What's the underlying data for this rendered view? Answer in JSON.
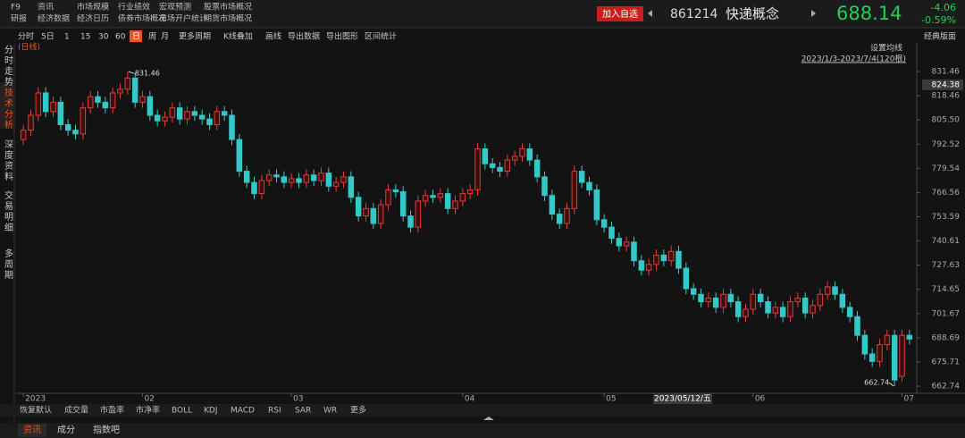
{
  "header": {
    "menu": [
      "F9",
      "资讯",
      "市场规模",
      "行业绩效",
      "宏观预测",
      "股票市场概况",
      "研报",
      "经济数据",
      "经济日历",
      "债券市场概况",
      "市场开户统计",
      "期货市场概况"
    ],
    "add_button": "加入自选",
    "code": "861214",
    "name": "快递概念",
    "price": "688.14",
    "change": "-4.06",
    "change_pct": "-0.59%"
  },
  "toolbar": {
    "items": [
      "分时",
      "5日",
      "1",
      "15",
      "30",
      "60",
      "日",
      "周",
      "月",
      "更多周期",
      "K线叠加",
      "画线",
      "导出数据",
      "导出图形",
      "区间统计"
    ],
    "layout": "经典版面"
  },
  "sidebar": [
    "分时走势",
    "技术分析",
    "深度资料",
    "交易明细",
    "多周期"
  ],
  "indicators": [
    "恢复默认",
    "成交量",
    "市盈率",
    "市净率",
    "BOLL",
    "KDJ",
    "MACD",
    "RSI",
    "SAR",
    "WR",
    "更多"
  ],
  "tabs": [
    "资讯",
    "成分",
    "指数吧"
  ],
  "chart_data": {
    "type": "candlestick",
    "subtitle": "(日线)",
    "ma_setting": "设置均线",
    "range_label": "2023/1/3-2023/7/4(120根)",
    "crosshair_date": "2023/05/12/五",
    "crosshair_price": 824.38,
    "up_color": "#e8393a",
    "down_color": "#33c9c9",
    "categories": [
      "2023",
      null,
      null,
      null,
      null,
      null,
      null,
      null,
      null,
      null,
      null,
      null,
      null,
      null,
      null,
      null,
      "02",
      null,
      null,
      null,
      null,
      null,
      null,
      null,
      null,
      null,
      null,
      null,
      null,
      null,
      null,
      null,
      null,
      null,
      null,
      null,
      "03",
      null,
      null,
      null,
      null,
      null,
      null,
      null,
      null,
      null,
      null,
      null,
      null,
      null,
      null,
      null,
      null,
      null,
      null,
      null,
      null,
      null,
      null,
      "04",
      null,
      null,
      null,
      null,
      null,
      null,
      null,
      null,
      null,
      null,
      null,
      null,
      null,
      null,
      null,
      null,
      null,
      null,
      "05",
      null,
      null,
      null,
      null,
      null,
      null,
      null,
      null,
      null,
      null,
      null,
      null,
      null,
      null,
      null,
      null,
      null,
      null,
      null,
      "06",
      null,
      null,
      null,
      null,
      null,
      null,
      null,
      null,
      null,
      null,
      null,
      null,
      null,
      null,
      null,
      null,
      null,
      null,
      null,
      "07",
      null
    ],
    "open": [
      795,
      800,
      808,
      820,
      810,
      815,
      803,
      800,
      798,
      812,
      818,
      815,
      812,
      820,
      822,
      828,
      815,
      818,
      808,
      805,
      807,
      812,
      806,
      810,
      808,
      806,
      803,
      810,
      808,
      795,
      778,
      772,
      766,
      773,
      776,
      775,
      772,
      774,
      772,
      776,
      773,
      777,
      770,
      772,
      775,
      764,
      754,
      758,
      750,
      760,
      768,
      767,
      754,
      748,
      762,
      765,
      764,
      766,
      758,
      762,
      766,
      768,
      790,
      782,
      780,
      778,
      784,
      786,
      790,
      784,
      775,
      765,
      755,
      750,
      758,
      778,
      772,
      768,
      752,
      748,
      742,
      738,
      740,
      730,
      725,
      728,
      733,
      730,
      735,
      726,
      715,
      712,
      708,
      710,
      705,
      712,
      708,
      700,
      704,
      712,
      708,
      702,
      705,
      700,
      708,
      710,
      702,
      706,
      712,
      716,
      712,
      705,
      700,
      690,
      680,
      676,
      685,
      690,
      668,
      690
    ],
    "high": [
      803,
      811,
      823,
      823,
      818,
      818,
      806,
      803,
      815,
      821,
      821,
      818,
      823,
      825,
      831.46,
      831,
      821,
      821,
      811,
      810,
      815,
      815,
      813,
      813,
      811,
      809,
      813,
      813,
      811,
      798,
      781,
      775,
      776,
      779,
      779,
      778,
      777,
      777,
      779,
      779,
      780,
      780,
      775,
      778,
      778,
      767,
      761,
      761,
      763,
      771,
      771,
      770,
      757,
      765,
      768,
      768,
      769,
      769,
      765,
      769,
      771,
      793,
      793,
      785,
      783,
      787,
      789,
      793,
      793,
      787,
      778,
      768,
      758,
      761,
      781,
      781,
      775,
      771,
      755,
      751,
      745,
      743,
      743,
      733,
      731,
      736,
      736,
      738,
      738,
      729,
      718,
      715,
      713,
      713,
      715,
      715,
      711,
      707,
      715,
      715,
      711,
      708,
      708,
      711,
      713,
      713,
      709,
      715,
      719,
      719,
      715,
      708,
      703,
      693,
      683,
      688,
      693,
      693,
      693,
      693
    ],
    "low": [
      792,
      797,
      805,
      807,
      807,
      800,
      797,
      795,
      795,
      809,
      812,
      809,
      809,
      817,
      819,
      812,
      812,
      805,
      802,
      802,
      804,
      803,
      803,
      805,
      803,
      800,
      800,
      805,
      792,
      775,
      769,
      763,
      763,
      770,
      772,
      769,
      769,
      769,
      769,
      770,
      770,
      767,
      767,
      769,
      761,
      751,
      751,
      747,
      747,
      757,
      764,
      751,
      745,
      745,
      759,
      761,
      761,
      755,
      755,
      759,
      763,
      765,
      779,
      777,
      775,
      775,
      781,
      783,
      781,
      772,
      762,
      752,
      747,
      747,
      755,
      769,
      765,
      749,
      745,
      739,
      735,
      735,
      727,
      722,
      722,
      725,
      727,
      727,
      723,
      712,
      709,
      705,
      705,
      702,
      702,
      705,
      697,
      697,
      701,
      705,
      699,
      699,
      697,
      697,
      705,
      699,
      699,
      703,
      709,
      709,
      702,
      697,
      687,
      677,
      673,
      673,
      682,
      662.74,
      665,
      685
    ],
    "close": [
      800,
      808,
      820,
      810,
      815,
      803,
      800,
      798,
      812,
      818,
      815,
      812,
      820,
      822,
      828,
      815,
      818,
      808,
      805,
      807,
      812,
      806,
      810,
      808,
      806,
      803,
      810,
      808,
      795,
      778,
      772,
      766,
      773,
      776,
      775,
      772,
      774,
      772,
      776,
      773,
      777,
      770,
      772,
      775,
      764,
      754,
      758,
      750,
      760,
      768,
      767,
      754,
      748,
      762,
      765,
      764,
      766,
      758,
      762,
      766,
      768,
      790,
      782,
      780,
      778,
      784,
      786,
      790,
      784,
      775,
      765,
      755,
      750,
      758,
      778,
      772,
      768,
      752,
      748,
      742,
      738,
      740,
      730,
      725,
      728,
      733,
      730,
      735,
      726,
      715,
      712,
      708,
      710,
      705,
      712,
      708,
      700,
      704,
      712,
      708,
      702,
      705,
      700,
      708,
      710,
      702,
      706,
      712,
      716,
      712,
      705,
      700,
      690,
      680,
      676,
      685,
      690,
      666,
      690,
      688
    ],
    "ylim": [
      658.9,
      838.2
    ],
    "yticks": [
      831.46,
      818.46,
      {
        "value": 805.5,
        "label": "805.50"
      },
      792.52,
      779.54,
      766.56,
      753.59,
      740.61,
      727.63,
      714.65,
      701.67,
      688.69,
      675.71,
      662.74
    ],
    "max_index": 14,
    "min_index": 117
  }
}
